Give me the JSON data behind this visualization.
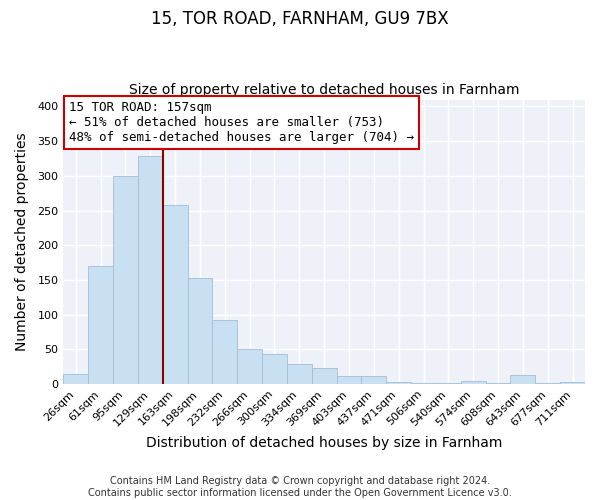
{
  "title": "15, TOR ROAD, FARNHAM, GU9 7BX",
  "subtitle": "Size of property relative to detached houses in Farnham",
  "xlabel": "Distribution of detached houses by size in Farnham",
  "ylabel": "Number of detached properties",
  "categories": [
    "26sqm",
    "61sqm",
    "95sqm",
    "129sqm",
    "163sqm",
    "198sqm",
    "232sqm",
    "266sqm",
    "300sqm",
    "334sqm",
    "369sqm",
    "403sqm",
    "437sqm",
    "471sqm",
    "506sqm",
    "540sqm",
    "574sqm",
    "608sqm",
    "643sqm",
    "677sqm",
    "711sqm"
  ],
  "values": [
    15,
    170,
    300,
    328,
    258,
    153,
    92,
    50,
    43,
    29,
    23,
    12,
    11,
    3,
    2,
    1,
    4,
    1,
    13,
    1,
    3
  ],
  "bar_color": "#c9dff2",
  "bar_edge_color": "#a0bfd8",
  "vline_x_index": 4,
  "vline_color": "#8b0000",
  "annotation_title": "15 TOR ROAD: 157sqm",
  "annotation_line1": "← 51% of detached houses are smaller (753)",
  "annotation_line2": "48% of semi-detached houses are larger (704) →",
  "annotation_box_color": "#ffffff",
  "annotation_box_edge": "#cc0000",
  "ylim": [
    0,
    410
  ],
  "yticks": [
    0,
    50,
    100,
    150,
    200,
    250,
    300,
    350,
    400
  ],
  "footer1": "Contains HM Land Registry data © Crown copyright and database right 2024.",
  "footer2": "Contains public sector information licensed under the Open Government Licence v3.0.",
  "bg_color": "#ffffff",
  "plot_bg_color": "#eef2f8",
  "grid_color": "#ffffff",
  "title_fontsize": 12,
  "subtitle_fontsize": 10,
  "axis_label_fontsize": 10,
  "tick_fontsize": 8,
  "footer_fontsize": 7,
  "annotation_fontsize": 9
}
